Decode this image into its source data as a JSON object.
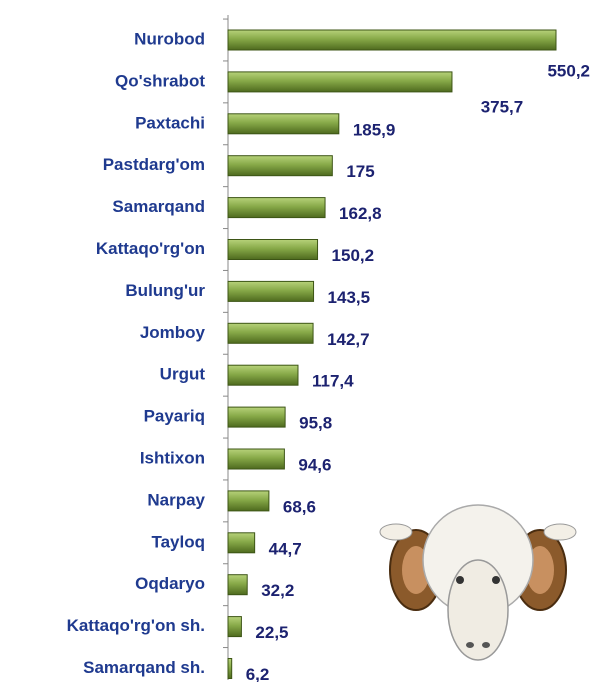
{
  "chart_data": {
    "type": "bar",
    "orientation": "horizontal",
    "categories": [
      "Nurobod",
      "Qo'shrabot",
      "Paxtachi",
      "Pastdarg'om",
      "Samarqand",
      "Kattaqo'rg'on",
      "Bulung'ur",
      "Jomboy",
      "Urgut",
      "Payariq",
      "Ishtixon",
      "Narpay",
      "Tayloq",
      "Oqdaryo",
      "Kattaqo'rg'on sh.",
      "Samarqand sh."
    ],
    "values": [
      550.2,
      375.7,
      185.9,
      175,
      162.8,
      150.2,
      143.5,
      142.7,
      117.4,
      95.8,
      94.6,
      68.6,
      44.7,
      32.2,
      22.5,
      6.2
    ],
    "value_labels": [
      "550,2",
      "375,7",
      "185,9",
      "175",
      "162,8",
      "150,2",
      "143,5",
      "142,7",
      "117,4",
      "95,8",
      "94,6",
      "68,6",
      "44,7",
      "32,2",
      "22,5",
      "6,2"
    ],
    "color": "#7a9b3c"
  }
}
